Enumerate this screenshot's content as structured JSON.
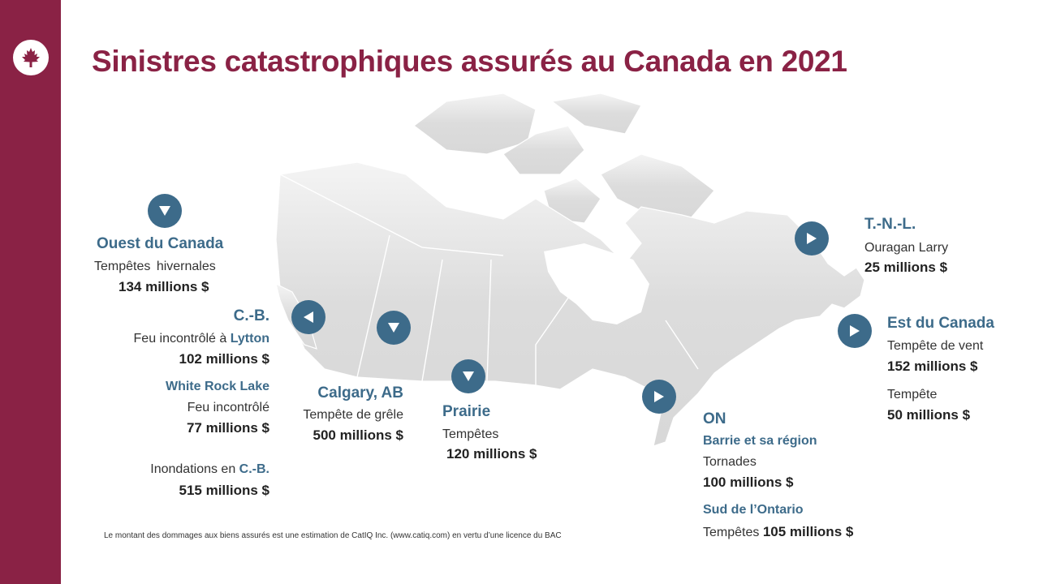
{
  "title": "Sinistres catastrophiques assurés au Canada en 2021",
  "colors": {
    "brand": "#8a2245",
    "accent": "#3d6b8a",
    "map": "#e3e3e3"
  },
  "logo": {
    "icon": "maple-leaf-icon"
  },
  "west": {
    "region": "Ouest du Canada",
    "desc": "Tempêtes hivernales",
    "amount": "134 millions $"
  },
  "bc": {
    "region": "C.-B.",
    "lytton": {
      "desc_prefix": "Feu incontrôlé à ",
      "place": "Lytton",
      "amount": "102 millions $"
    },
    "white_rock": {
      "title": "White Rock Lake",
      "desc": "Feu incontrôlé",
      "amount": "77 millions $"
    },
    "floods": {
      "desc_prefix": "Inondations en ",
      "place": "C.-B.",
      "amount": "515 millions $"
    }
  },
  "calgary": {
    "region": "Calgary, AB",
    "desc": "Tempête de grêle",
    "amount": "500 millions $"
  },
  "prairie": {
    "region": "Prairie",
    "desc": "Tempêtes",
    "amount": "120 millions $"
  },
  "ontario": {
    "region": "ON",
    "barrie": {
      "title": "Barrie et sa région",
      "desc": "Tornades",
      "amount": "100 millions $"
    },
    "south": {
      "title": "Sud de l’Ontario",
      "desc": "Tempêtes",
      "amount": "105 millions $"
    }
  },
  "nl": {
    "region": "T.-N.-L.",
    "desc": "Ouragan Larry",
    "amount": "25 millions $"
  },
  "east": {
    "region": "Est du Canada",
    "desc1": "Tempête de vent",
    "amount1": "152 millions $",
    "desc2": "Tempête",
    "amount2": "50 millions $"
  },
  "footnote": "Le montant des dommages aux biens assurés est une estimation de CatIQ Inc. (www.catiq.com) en vertu d’une licence du BAC"
}
